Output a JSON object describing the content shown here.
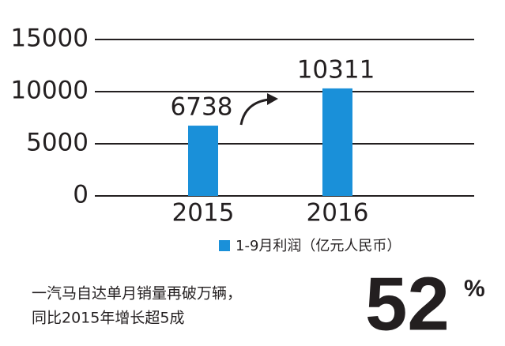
{
  "chart_data": {
    "type": "bar",
    "categories": [
      "2015",
      "2016"
    ],
    "series": [
      {
        "name": "1-9月利润（亿元人民币）",
        "color": "#1a90d9",
        "values": [
          6738,
          10311
        ]
      }
    ],
    "ylim": [
      0,
      15000
    ],
    "yticks": [
      0,
      5000,
      10000,
      15000
    ],
    "grid": true,
    "annotations": [
      "一汽马自达单月销量再破万辆，",
      "同比2015年增长超5成"
    ],
    "callout": {
      "value": 52,
      "unit": "%"
    }
  }
}
